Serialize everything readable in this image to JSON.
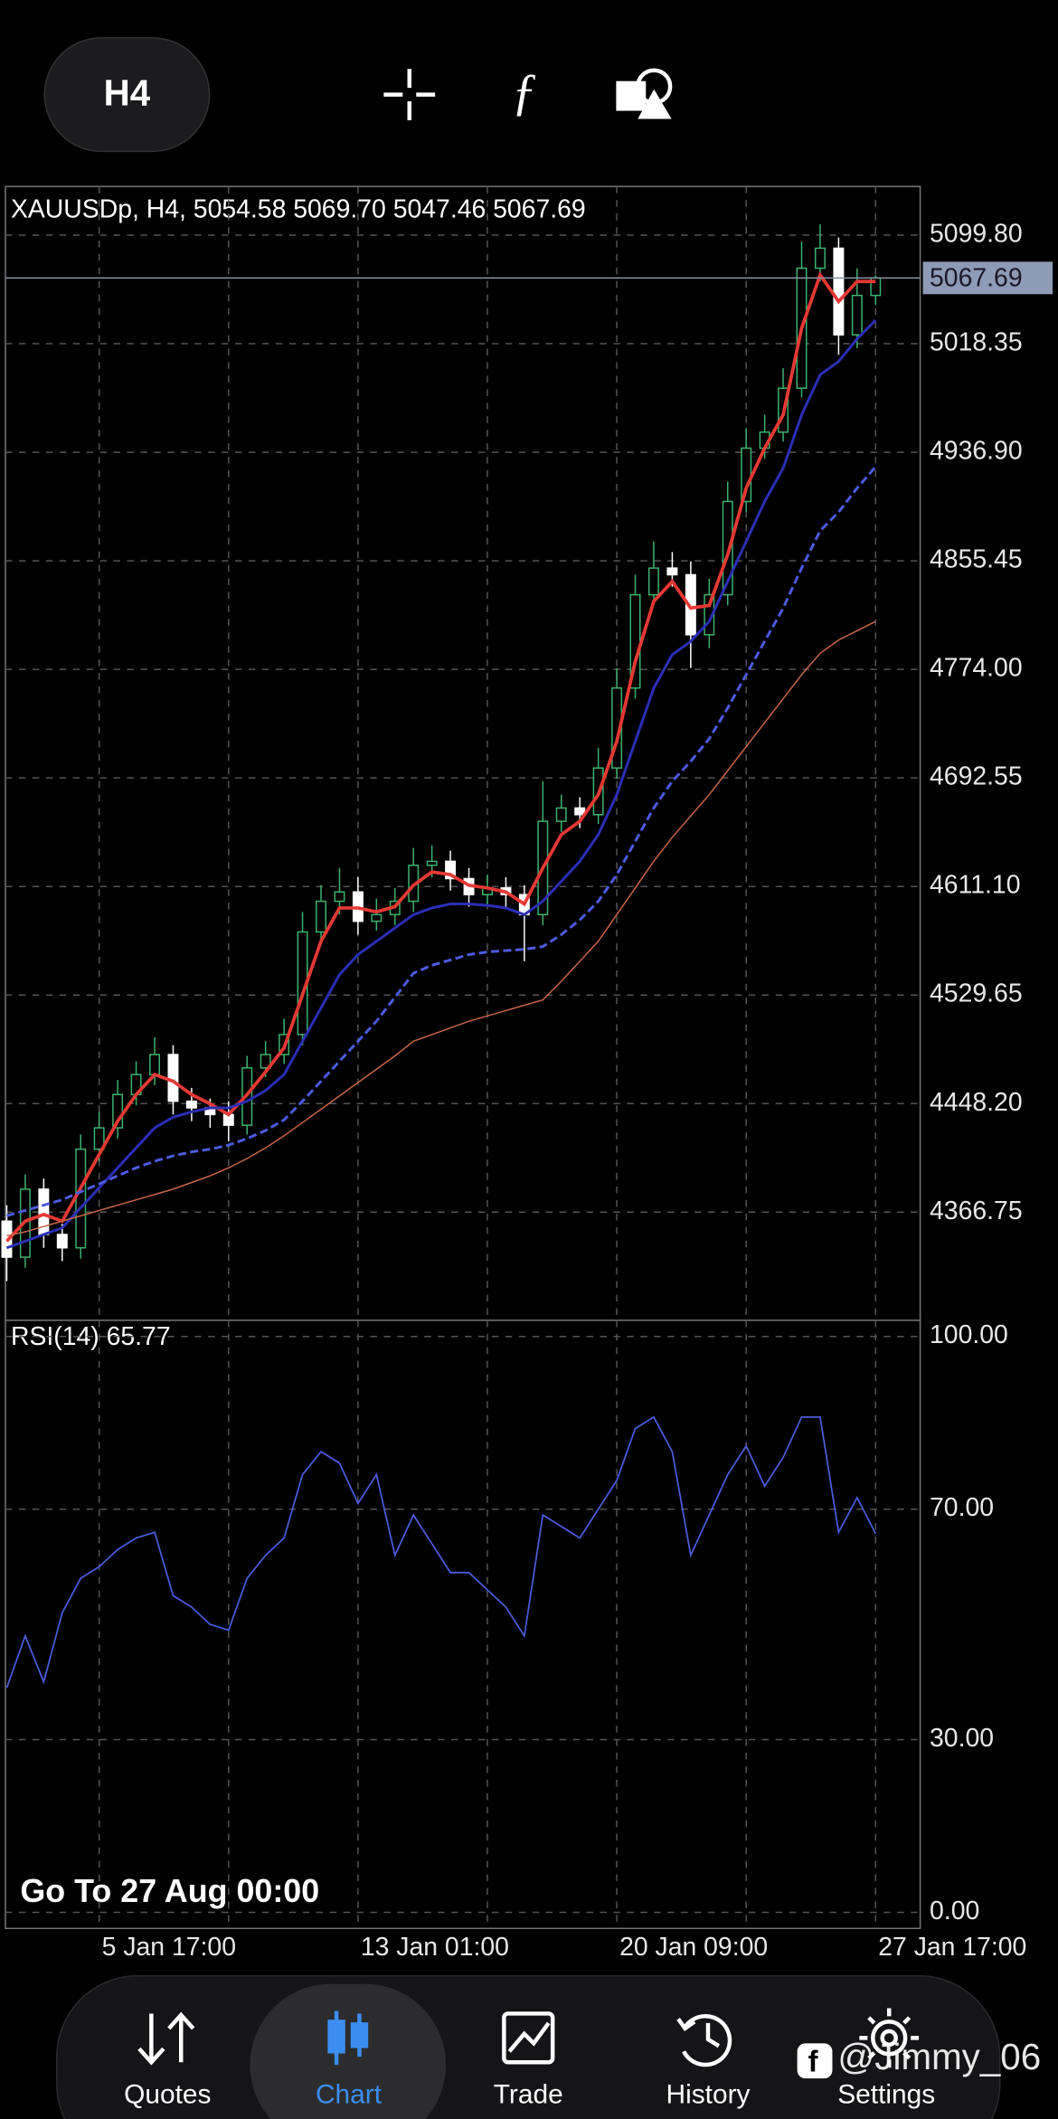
{
  "toolbar": {
    "timeframe": "H4"
  },
  "chart_data": [
    {
      "type": "candlestick",
      "title": "XAUUSDp, H4, 5054.58 5069.70 5047.46 5067.69",
      "categories": [
        null,
        null,
        null,
        null,
        null,
        "5 Jan 17:00",
        null,
        null,
        null,
        null,
        null,
        null,
        null,
        null,
        null,
        null,
        null,
        null,
        null,
        "13 Jan 01:00",
        null,
        null,
        null,
        null,
        null,
        null,
        null,
        null,
        null,
        null,
        null,
        null,
        null,
        "20 Jan 09:00",
        null,
        null,
        null,
        null,
        null,
        null,
        null,
        null,
        null,
        null,
        null,
        null,
        null,
        "27 Jan 17:00"
      ],
      "open": [
        4360,
        4333,
        4384,
        4350,
        4340,
        4414,
        4430,
        4455,
        4470,
        4485,
        4450,
        4445,
        4440,
        4432,
        4475,
        4485,
        4500,
        4577,
        4600,
        4607,
        4585,
        4590,
        4600,
        4627,
        4630,
        4617,
        4605,
        4610,
        4605,
        4590,
        4660,
        4670,
        4665,
        4700,
        4760,
        4830,
        4850,
        4845,
        4800,
        4830,
        4900,
        4940,
        4952,
        4985,
        5075,
        5090,
        5025,
        5054.58
      ],
      "high": [
        4372,
        4395,
        4392,
        4358,
        4425,
        4442,
        4466,
        4480,
        4498,
        4492,
        4460,
        4452,
        4450,
        4484,
        4495,
        4512,
        4592,
        4612,
        4625,
        4618,
        4602,
        4610,
        4640,
        4642,
        4638,
        4625,
        4620,
        4618,
        4612,
        4690,
        4680,
        4678,
        4715,
        4775,
        4845,
        4870,
        4862,
        4855,
        4842,
        4915,
        4955,
        4965,
        5000,
        5095,
        5108,
        5098,
        5075,
        5069.7
      ],
      "low": [
        4315,
        4325,
        4340,
        4330,
        4332,
        4405,
        4422,
        4447,
        4462,
        4440,
        4435,
        4430,
        4420,
        4425,
        4468,
        4478,
        4492,
        4568,
        4590,
        4575,
        4578,
        4582,
        4592,
        4618,
        4608,
        4596,
        4598,
        4596,
        4555,
        4582,
        4652,
        4655,
        4658,
        4692,
        4752,
        4822,
        4836,
        4775,
        4790,
        4822,
        4892,
        4932,
        4945,
        4978,
        5065,
        5010,
        5015,
        5047.46
      ],
      "close": [
        4333,
        4384,
        4350,
        4340,
        4414,
        4430,
        4455,
        4470,
        4485,
        4450,
        4445,
        4440,
        4432,
        4475,
        4485,
        4500,
        4577,
        4600,
        4607,
        4585,
        4590,
        4600,
        4627,
        4630,
        4617,
        4605,
        4610,
        4605,
        4590,
        4660,
        4670,
        4665,
        4700,
        4760,
        4830,
        4850,
        4845,
        4800,
        4830,
        4900,
        4940,
        4952,
        4985,
        5075,
        5090,
        5025,
        5054.58,
        5067.69
      ],
      "up_color": "#3cb371",
      "down_color": "#ffffff",
      "series": [
        {
          "color": "#e53935",
          "width": 2.5,
          "values": [
            4345,
            4360,
            4365,
            4360,
            4385,
            4410,
            4435,
            4455,
            4470,
            4465,
            4455,
            4448,
            4440,
            4455,
            4472,
            4490,
            4530,
            4570,
            4595,
            4595,
            4592,
            4596,
            4612,
            4622,
            4620,
            4612,
            4610,
            4607,
            4598,
            4625,
            4650,
            4660,
            4680,
            4720,
            4780,
            4825,
            4840,
            4820,
            4822,
            4860,
            4910,
            4940,
            4965,
            5030,
            5070,
            5050,
            5065,
            5065
          ]
        },
        {
          "color": "#2b2fb5",
          "width": 2,
          "values": [
            4340,
            4345,
            4350,
            4355,
            4370,
            4385,
            4400,
            4415,
            4430,
            4438,
            4442,
            4445,
            4445,
            4450,
            4458,
            4470,
            4495,
            4520,
            4545,
            4560,
            4570,
            4580,
            4590,
            4595,
            4598,
            4598,
            4597,
            4595,
            4590,
            4600,
            4615,
            4630,
            4650,
            4680,
            4720,
            4760,
            4785,
            4795,
            4810,
            4840,
            4870,
            4900,
            4925,
            4965,
            4995,
            5005,
            5022,
            5036
          ]
        },
        {
          "color": "#4d5be0",
          "width": 2,
          "dashed": true,
          "values": [
            4364,
            4368,
            4372,
            4376,
            4382,
            4388,
            4394,
            4400,
            4405,
            4409,
            4412,
            4414,
            4417,
            4422,
            4428,
            4436,
            4450,
            4465,
            4480,
            4495,
            4510,
            4528,
            4546,
            4552,
            4556,
            4560,
            4562,
            4563,
            4564,
            4566,
            4575,
            4586,
            4600,
            4620,
            4645,
            4670,
            4690,
            4705,
            4722,
            4745,
            4770,
            4795,
            4820,
            4850,
            4878,
            4892,
            4910,
            4926
          ]
        },
        {
          "color": "#c8654a",
          "width": 1,
          "values": [
            4349,
            4352,
            4356,
            4360,
            4364,
            4368,
            4372,
            4376,
            4380,
            4384,
            4389,
            4394,
            4400,
            4407,
            4415,
            4424,
            4434,
            4444,
            4454,
            4464,
            4474,
            4484,
            4495,
            4500,
            4505,
            4510,
            4514,
            4518,
            4522,
            4526,
            4540,
            4555,
            4570,
            4590,
            4610,
            4630,
            4648,
            4664,
            4680,
            4698,
            4716,
            4734,
            4752,
            4770,
            4786,
            4796,
            4803,
            4810
          ]
        }
      ],
      "ylim": [
        4285.6,
        5136.3
      ],
      "yticks": [
        {
          "value": 4366.75,
          "label": "4366.75"
        },
        {
          "value": 4448.2,
          "label": "4448.20"
        },
        {
          "value": 4529.65,
          "label": "4529.65"
        },
        {
          "value": 4611.1,
          "label": "4611.10"
        },
        {
          "value": 4692.55,
          "label": "4692.55"
        },
        {
          "value": 4774,
          "label": "4774.00"
        },
        {
          "value": 4855.45,
          "label": "4855.45"
        },
        {
          "value": 4936.9,
          "label": "4936.90"
        },
        {
          "value": 5018.35,
          "label": "5018.35"
        },
        {
          "value": 5099.8,
          "label": "5099.80"
        }
      ],
      "last_price": {
        "value": 5067.69,
        "label": "5067.69"
      },
      "grid": true
    },
    {
      "type": "line",
      "title": "RSI(14) 65.77",
      "color": "#4a5bd6",
      "values": [
        39,
        48,
        40,
        52,
        58,
        60,
        63,
        65,
        66,
        55,
        53,
        50,
        49,
        58,
        62,
        65,
        76,
        80,
        78,
        71,
        76,
        62,
        69,
        64,
        59,
        59,
        56,
        53,
        48,
        69,
        67,
        65,
        70,
        75,
        84,
        86,
        80,
        62,
        69,
        76,
        81,
        74,
        79,
        86,
        86,
        66,
        72,
        65.77
      ],
      "ylim": [
        -2.8,
        102.8
      ],
      "yticks": [
        {
          "value": 0,
          "label": "0.00"
        },
        {
          "value": 30,
          "label": "30.00"
        },
        {
          "value": 70,
          "label": "70.00"
        },
        {
          "value": 100,
          "label": "100.00"
        }
      ],
      "grid": true
    }
  ],
  "goto": "Go To 27 Aug 00:00",
  "nav": [
    "Quotes",
    "Chart",
    "Trade",
    "History",
    "Settings"
  ],
  "watermark": "@Jimmy_06"
}
